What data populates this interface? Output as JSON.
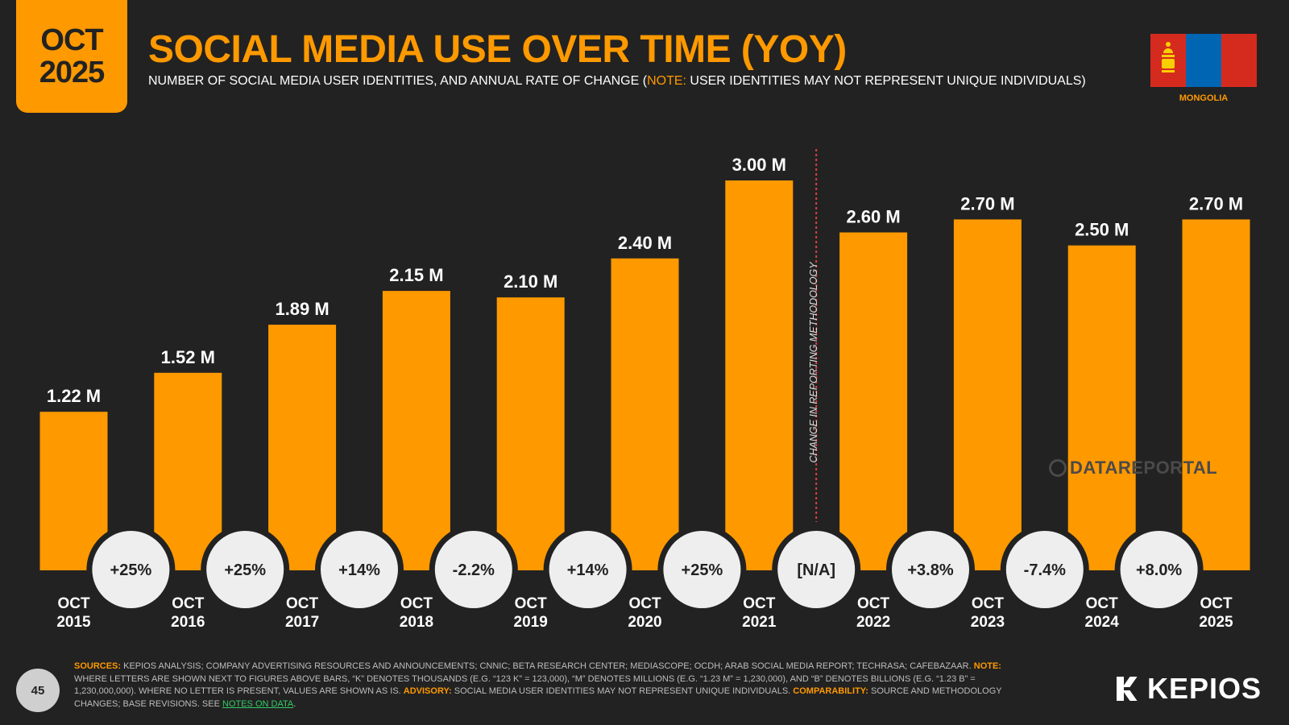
{
  "header": {
    "badge_month": "OCT",
    "badge_year": "2025",
    "title": "SOCIAL MEDIA USE OVER TIME (YOY)",
    "subtitle_pre": "NUMBER OF SOCIAL MEDIA USER IDENTITIES, AND ANNUAL RATE OF CHANGE (",
    "subtitle_note": "NOTE:",
    "subtitle_post": " USER IDENTITIES MAY NOT REPRESENT UNIQUE INDIVIDUALS)",
    "country": "MONGOLIA"
  },
  "colors": {
    "accent": "#FF9900",
    "background": "#222222",
    "bubble": "#EEEEEE",
    "divider": "#E04040"
  },
  "chart_data": {
    "type": "bar",
    "categories": [
      "OCT 2015",
      "OCT 2016",
      "OCT 2017",
      "OCT 2018",
      "OCT 2019",
      "OCT 2020",
      "OCT 2021",
      "OCT 2022",
      "OCT 2023",
      "OCT 2024",
      "OCT 2025"
    ],
    "category_lines": [
      [
        "OCT",
        "2015"
      ],
      [
        "OCT",
        "2016"
      ],
      [
        "OCT",
        "2017"
      ],
      [
        "OCT",
        "2018"
      ],
      [
        "OCT",
        "2019"
      ],
      [
        "OCT",
        "2020"
      ],
      [
        "OCT",
        "2021"
      ],
      [
        "OCT",
        "2022"
      ],
      [
        "OCT",
        "2023"
      ],
      [
        "OCT",
        "2024"
      ],
      [
        "OCT",
        "2025"
      ]
    ],
    "values": [
      1.22,
      1.52,
      1.89,
      2.15,
      2.1,
      2.4,
      3.0,
      2.6,
      2.7,
      2.5,
      2.7
    ],
    "value_labels": [
      "1.22 M",
      "1.52 M",
      "1.89 M",
      "2.15 M",
      "2.10 M",
      "2.40 M",
      "3.00 M",
      "2.60 M",
      "2.70 M",
      "2.50 M",
      "2.70 M"
    ],
    "yoy_changes": [
      "+25%",
      "+25%",
      "+14%",
      "-2.2%",
      "+14%",
      "+25%",
      "[N/A]",
      "+3.8%",
      "-7.4%",
      "+8.0%"
    ],
    "unit": "M",
    "ylim": [
      0,
      3.0
    ],
    "grid": false,
    "annotation": "CHANGE IN REPORTING METHODOLOGY",
    "annotation_between": [
      "OCT 2021",
      "OCT 2022"
    ]
  },
  "watermark": "DATAREPORTAL",
  "footer": {
    "sources_label": "SOURCES:",
    "sources_text": " KEPIOS ANALYSIS; COMPANY ADVERTISING RESOURCES AND ANNOUNCEMENTS; CNNIC; BETA RESEARCH CENTER; MEDIASCOPE; OCDH; ARAB SOCIAL MEDIA REPORT; TECHRASA; CAFEBAZAAR. ",
    "note_label": "NOTE:",
    "note_text": " WHERE LETTERS ARE SHOWN NEXT TO FIGURES ABOVE BARS, “K” DENOTES THOUSANDS (E.G. “123 K” = 123,000), “M” DENOTES MILLIONS (E.G. “1.23 M” = 1,230,000), AND “B” DENOTES BILLIONS (E.G. “1.23 B” = 1,230,000,000). WHERE NO LETTER IS PRESENT, VALUES ARE SHOWN AS IS. ",
    "advisory_label": "ADVISORY:",
    "advisory_text": " SOCIAL MEDIA USER IDENTITIES MAY NOT REPRESENT UNIQUE INDIVIDUALS. ",
    "comparability_label": "COMPARABILITY:",
    "comparability_text": " SOURCE AND METHODOLOGY CHANGES; BASE REVISIONS. SEE ",
    "link_text": "NOTES ON DATA",
    "end_text": "."
  },
  "page_number": "45",
  "brand": "KEPIOS"
}
